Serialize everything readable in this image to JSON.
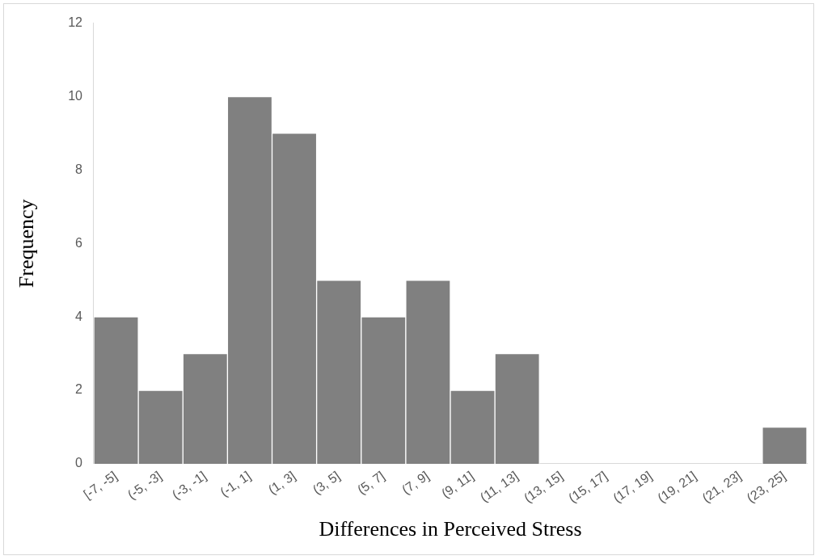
{
  "chart_data": {
    "type": "bar",
    "xlabel": "Differences in Perceived Stress",
    "ylabel": "Frequency",
    "categories": [
      "[-7, -5]",
      "(-5, -3]",
      "(-3, -1]",
      "(-1, 1]",
      "(1, 3]",
      "(3, 5]",
      "(5, 7]",
      "(7, 9]",
      "(9, 11]",
      "(11, 13]",
      "(13, 15]",
      "(15, 17]",
      "(17, 19]",
      "(19, 21]",
      "(21, 23]",
      "(23, 25]"
    ],
    "values": [
      4,
      2,
      3,
      10,
      9,
      5,
      4,
      5,
      2,
      3,
      0,
      0,
      0,
      0,
      0,
      1
    ],
    "color": "#808080",
    "ylim": [
      0,
      12
    ],
    "yticks": [
      0,
      2,
      4,
      6,
      8,
      10,
      12
    ],
    "grid": false,
    "legend": false
  }
}
